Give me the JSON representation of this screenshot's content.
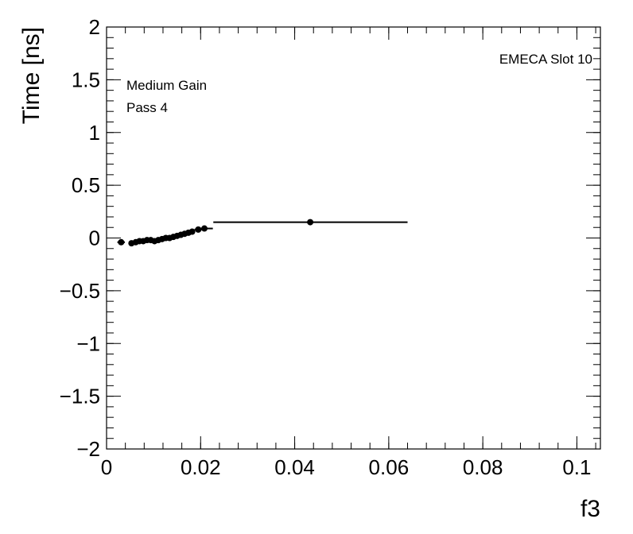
{
  "chart_data": {
    "type": "scatter",
    "title": "",
    "xlabel": "f3",
    "ylabel": "Time [ns]",
    "xlim": [
      0,
      0.105
    ],
    "ylim": [
      -2,
      2
    ],
    "x_ticks": [
      0,
      0.02,
      0.04,
      0.06,
      0.08,
      0.1
    ],
    "x_tick_labels": [
      "0",
      "0.02",
      "0.04",
      "0.06",
      "0.08",
      "0.1"
    ],
    "y_ticks": [
      -2,
      -1.5,
      -1,
      -0.5,
      0,
      0.5,
      1,
      1.5,
      2
    ],
    "y_tick_labels": [
      "−2",
      "−1.5",
      "−1",
      "−0.5",
      "0",
      "0.5",
      "1",
      "1.5",
      "2"
    ],
    "grid": false,
    "legend": "none",
    "annotations": {
      "top_right": "EMECA Slot 10",
      "line1": "Medium Gain",
      "line2": "Pass 4"
    },
    "marker_color": "#000000",
    "series": [
      {
        "x": [
          0.0031,
          0.0053,
          0.0062,
          0.007,
          0.0078,
          0.0086,
          0.0094,
          0.0102,
          0.011,
          0.0118,
          0.0126,
          0.0134,
          0.0142,
          0.015,
          0.0158,
          0.0166,
          0.0174,
          0.0182,
          0.0195,
          0.0208,
          0.0433
        ],
        "y": [
          -0.04,
          -0.05,
          -0.04,
          -0.03,
          -0.03,
          -0.02,
          -0.02,
          -0.03,
          -0.02,
          -0.01,
          0.0,
          0.0,
          0.01,
          0.02,
          0.03,
          0.04,
          0.05,
          0.06,
          0.08,
          0.09,
          0.15
        ],
        "x_err_low": [
          0.0008,
          0.0005,
          0.0004,
          0.0004,
          0.0004,
          0.0004,
          0.0004,
          0.0004,
          0.0004,
          0.0004,
          0.0004,
          0.0004,
          0.0004,
          0.0004,
          0.0004,
          0.0004,
          0.0004,
          0.0004,
          0.0008,
          0.0008,
          0.0206
        ],
        "x_err_high": [
          0.0008,
          0.0005,
          0.0004,
          0.0004,
          0.0004,
          0.0004,
          0.0004,
          0.0004,
          0.0004,
          0.0004,
          0.0004,
          0.0004,
          0.0004,
          0.0004,
          0.0004,
          0.0004,
          0.0004,
          0.0004,
          0.0008,
          0.0018,
          0.0207
        ]
      }
    ]
  }
}
